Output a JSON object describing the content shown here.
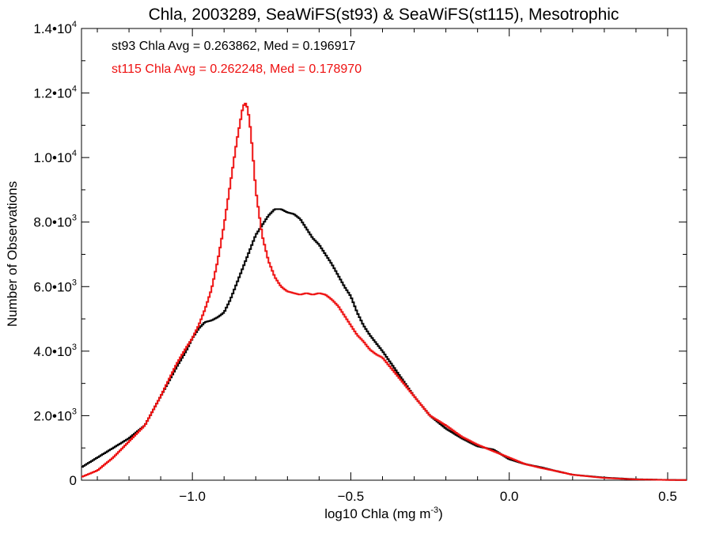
{
  "chart_data": {
    "type": "line",
    "title": "Chla, 2003289, SeaWiFS(st93) & SeaWiFS(st115), Mesotrophic",
    "xlabel": "log10 Chla (mg m",
    "xlabel_sup": "-3",
    "xlabel_close": ")",
    "ylabel": "Number of Observations",
    "xlim": [
      -1.35,
      0.56
    ],
    "ylim": [
      0,
      14000
    ],
    "grid": false,
    "x_ticks": [
      {
        "value": -1.0,
        "label": "−1.0"
      },
      {
        "value": -0.5,
        "label": "−0.5"
      },
      {
        "value": 0.0,
        "label": "0.0"
      },
      {
        "value": 0.5,
        "label": "0.5"
      }
    ],
    "y_ticks": [
      {
        "value": 0,
        "mantissa": "0",
        "exp": ""
      },
      {
        "value": 2000,
        "mantissa": "2.0•10",
        "exp": "3"
      },
      {
        "value": 4000,
        "mantissa": "4.0•10",
        "exp": "3"
      },
      {
        "value": 6000,
        "mantissa": "6.0•10",
        "exp": "3"
      },
      {
        "value": 8000,
        "mantissa": "8.0•10",
        "exp": "3"
      },
      {
        "value": 10000,
        "mantissa": "1.0•10",
        "exp": "4"
      },
      {
        "value": 12000,
        "mantissa": "1.2•10",
        "exp": "4"
      },
      {
        "value": 14000,
        "mantissa": "1.4•10",
        "exp": "4"
      }
    ],
    "annotations": [
      {
        "text": "st93 Chla Avg = 0.263862, Med = 0.196917",
        "color": "#000000"
      },
      {
        "text": "st115 Chla Avg = 0.262248, Med = 0.178970",
        "color": "#ee1111"
      }
    ],
    "series": [
      {
        "color": "#000000",
        "x": [
          -1.35,
          -1.3,
          -1.25,
          -1.2,
          -1.15,
          -1.1,
          -1.05,
          -1.02,
          -1.0,
          -0.98,
          -0.96,
          -0.94,
          -0.92,
          -0.9,
          -0.88,
          -0.86,
          -0.84,
          -0.82,
          -0.8,
          -0.78,
          -0.76,
          -0.74,
          -0.72,
          -0.7,
          -0.68,
          -0.66,
          -0.64,
          -0.62,
          -0.6,
          -0.58,
          -0.56,
          -0.54,
          -0.52,
          -0.5,
          -0.48,
          -0.46,
          -0.44,
          -0.42,
          -0.4,
          -0.35,
          -0.3,
          -0.25,
          -0.2,
          -0.15,
          -0.1,
          -0.05,
          0.0,
          0.05,
          0.1,
          0.15,
          0.2,
          0.3,
          0.4,
          0.5,
          0.56
        ],
        "y": [
          400,
          700,
          1000,
          1300,
          1700,
          2600,
          3500,
          4000,
          4400,
          4700,
          4900,
          4950,
          5050,
          5200,
          5600,
          6100,
          6600,
          7100,
          7600,
          7900,
          8200,
          8400,
          8400,
          8300,
          8250,
          8100,
          7800,
          7500,
          7300,
          7000,
          6700,
          6350,
          6000,
          5700,
          5200,
          4800,
          4500,
          4250,
          4000,
          3300,
          2600,
          2000,
          1600,
          1300,
          1050,
          950,
          650,
          500,
          400,
          280,
          170,
          80,
          30,
          10,
          5
        ]
      },
      {
        "color": "#ee1111",
        "x": [
          -1.35,
          -1.3,
          -1.25,
          -1.2,
          -1.15,
          -1.1,
          -1.05,
          -1.02,
          -1.0,
          -0.98,
          -0.96,
          -0.94,
          -0.92,
          -0.9,
          -0.88,
          -0.86,
          -0.84,
          -0.83,
          -0.82,
          -0.81,
          -0.8,
          -0.78,
          -0.76,
          -0.74,
          -0.72,
          -0.7,
          -0.68,
          -0.66,
          -0.64,
          -0.62,
          -0.6,
          -0.58,
          -0.56,
          -0.54,
          -0.52,
          -0.5,
          -0.48,
          -0.46,
          -0.44,
          -0.42,
          -0.4,
          -0.35,
          -0.3,
          -0.25,
          -0.2,
          -0.15,
          -0.1,
          -0.05,
          0.0,
          0.05,
          0.1,
          0.15,
          0.2,
          0.3,
          0.4,
          0.5,
          0.56
        ],
        "y": [
          100,
          300,
          700,
          1200,
          1700,
          2600,
          3600,
          4100,
          4400,
          4800,
          5300,
          5900,
          6800,
          7900,
          9200,
          10500,
          11600,
          11700,
          11200,
          10200,
          9000,
          7600,
          6800,
          6300,
          6000,
          5850,
          5800,
          5750,
          5800,
          5750,
          5800,
          5750,
          5600,
          5400,
          5100,
          4800,
          4500,
          4300,
          4050,
          3900,
          3800,
          3200,
          2600,
          2000,
          1700,
          1350,
          1100,
          900,
          700,
          500,
          380,
          280,
          170,
          70,
          25,
          8,
          5
        ]
      }
    ]
  }
}
